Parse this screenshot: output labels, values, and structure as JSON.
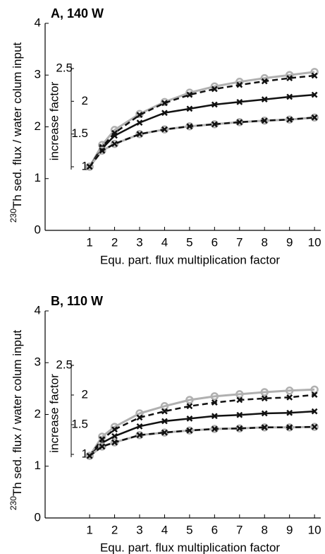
{
  "chart_data": [
    {
      "type": "line",
      "title": "A, 140 W",
      "ylabel_superscript": "230",
      "ylabel": "Th sed. flux / water colum input",
      "xlabel": "Equ. part. flux multiplication factor",
      "y2label": "increase factor",
      "x": [
        1,
        1.5,
        2,
        3,
        4,
        5,
        6,
        7,
        8,
        9,
        10
      ],
      "xlim": [
        -0.78,
        10.25
      ],
      "xticks": [
        1,
        2,
        3,
        4,
        5,
        6,
        7,
        8,
        9,
        10
      ],
      "ylim": [
        0,
        4
      ],
      "yticks": [
        0,
        1,
        2,
        3,
        4
      ],
      "y2lim": [
        1,
        2.5
      ],
      "y2ticks": [
        1,
        1.5,
        2,
        2.5
      ],
      "series": [
        {
          "color": "#b0b0b0",
          "line_style": "solid",
          "marker": "circle",
          "values": [
            1.23,
            1.65,
            1.94,
            2.25,
            2.48,
            2.66,
            2.78,
            2.87,
            2.94,
            3.0,
            3.06
          ]
        },
        {
          "color": "#111111",
          "line_style": "dashed",
          "marker": "x",
          "values": [
            1.23,
            1.61,
            1.88,
            2.23,
            2.46,
            2.62,
            2.73,
            2.81,
            2.88,
            2.94,
            2.99
          ]
        },
        {
          "color": "#111111",
          "line_style": "solid",
          "marker": "x",
          "values": [
            1.23,
            1.58,
            1.83,
            2.08,
            2.27,
            2.35,
            2.43,
            2.48,
            2.53,
            2.58,
            2.62
          ]
        },
        {
          "color": "#b0b0b0",
          "line_style": "solid",
          "marker": "circle",
          "values": [
            1.23,
            1.54,
            1.67,
            1.86,
            1.95,
            2.01,
            2.05,
            2.09,
            2.12,
            2.14,
            2.18
          ]
        },
        {
          "color": "#111111",
          "line_style": "dashed",
          "marker": "x",
          "values": [
            1.23,
            1.54,
            1.67,
            1.86,
            1.95,
            2.01,
            2.05,
            2.09,
            2.12,
            2.14,
            2.18
          ]
        }
      ]
    },
    {
      "type": "line",
      "title": "B, 110 W",
      "ylabel_superscript": "230",
      "ylabel": "Th sed. flux / water colum input",
      "xlabel": "Equ. part. flux multiplication factor",
      "y2label": "increase factor",
      "x": [
        1,
        1.5,
        2,
        3,
        4,
        5,
        6,
        7,
        8,
        9,
        10
      ],
      "xlim": [
        -0.78,
        10.25
      ],
      "xticks": [
        1,
        2,
        3,
        4,
        5,
        6,
        7,
        8,
        9,
        10
      ],
      "ylim": [
        0,
        4
      ],
      "yticks": [
        0,
        1,
        2,
        3,
        4
      ],
      "y2lim": [
        1,
        2.5
      ],
      "y2ticks": [
        1,
        1.5,
        2,
        2.5
      ],
      "series": [
        {
          "color": "#b0b0b0",
          "line_style": "solid",
          "marker": "circle",
          "values": [
            1.2,
            1.57,
            1.76,
            2.02,
            2.16,
            2.28,
            2.35,
            2.39,
            2.43,
            2.46,
            2.48
          ]
        },
        {
          "color": "#111111",
          "line_style": "dashed",
          "marker": "x",
          "values": [
            1.2,
            1.52,
            1.71,
            1.94,
            2.06,
            2.16,
            2.23,
            2.28,
            2.31,
            2.33,
            2.38
          ]
        },
        {
          "color": "#111111",
          "line_style": "solid",
          "marker": "x",
          "values": [
            1.2,
            1.45,
            1.58,
            1.77,
            1.87,
            1.92,
            1.97,
            1.99,
            2.02,
            2.03,
            2.06
          ]
        },
        {
          "color": "#b0b0b0",
          "line_style": "solid",
          "marker": "circle",
          "values": [
            1.2,
            1.38,
            1.46,
            1.6,
            1.65,
            1.69,
            1.72,
            1.73,
            1.75,
            1.75,
            1.76
          ]
        },
        {
          "color": "#111111",
          "line_style": "dashed",
          "marker": "x",
          "values": [
            1.2,
            1.38,
            1.46,
            1.6,
            1.65,
            1.69,
            1.72,
            1.73,
            1.75,
            1.75,
            1.76
          ]
        }
      ]
    }
  ]
}
